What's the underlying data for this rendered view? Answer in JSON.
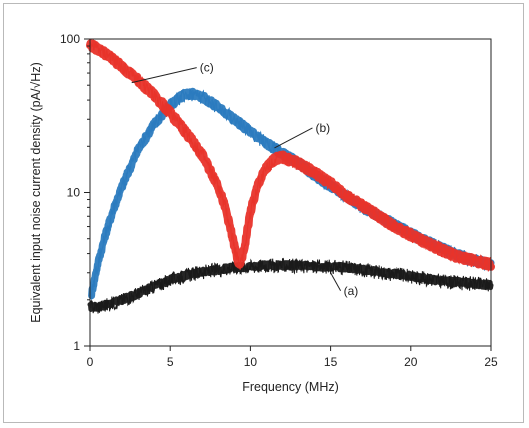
{
  "chart_data": {
    "type": "line",
    "title": "",
    "xlabel": "Frequency (MHz)",
    "ylabel": "Equivalent input noise current density (pA/√Hz)",
    "xlim": [
      0,
      25
    ],
    "ylim": [
      1,
      100
    ],
    "y_scale": "log",
    "x_ticks": [
      "0",
      "5",
      "10",
      "15",
      "20",
      "25"
    ],
    "y_ticks": [
      "1",
      "10",
      "100"
    ],
    "grid": false,
    "series": [
      {
        "color": "#1a1a1a",
        "x": [
          0,
          0.5,
          1,
          2,
          3,
          4,
          5,
          6,
          7,
          8,
          9,
          10,
          11,
          12,
          13,
          14,
          15,
          16,
          17,
          18,
          19,
          20,
          21,
          22,
          23,
          24,
          25
        ],
        "values": [
          1.8,
          1.8,
          1.85,
          2.0,
          2.2,
          2.45,
          2.7,
          2.9,
          3.05,
          3.15,
          3.25,
          3.3,
          3.35,
          3.35,
          3.35,
          3.3,
          3.3,
          3.25,
          3.15,
          3.05,
          2.95,
          2.85,
          2.75,
          2.65,
          2.6,
          2.55,
          2.5
        ]
      },
      {
        "color": "#2b7bbf",
        "x": [
          0.1,
          0.5,
          1,
          1.5,
          2,
          3,
          4,
          5,
          5.5,
          6,
          6.5,
          7,
          8,
          9,
          10,
          11,
          12,
          13,
          14,
          15,
          16,
          17,
          18,
          19,
          20,
          21,
          22,
          23,
          24,
          25
        ],
        "values": [
          2.2,
          3.5,
          5.5,
          8,
          11,
          19,
          28,
          37,
          41,
          44,
          44,
          42,
          36,
          30,
          25,
          21,
          18,
          15.5,
          13,
          11,
          9.5,
          8,
          7,
          6.2,
          5.4,
          4.8,
          4.3,
          3.9,
          3.6,
          3.4
        ]
      },
      {
        "color": "#e8332a",
        "x": [
          0,
          1,
          2,
          3,
          4,
          5,
          6,
          7,
          8,
          8.5,
          9,
          9.3,
          9.6,
          10,
          10.5,
          11,
          11.5,
          12,
          13,
          14,
          15,
          16,
          17,
          18,
          19,
          20,
          21,
          22,
          23,
          24,
          25
        ],
        "values": [
          92,
          80,
          66,
          54,
          43,
          33,
          24.5,
          17.5,
          11,
          7.5,
          4.5,
          3.3,
          4.2,
          7.5,
          11.5,
          14.5,
          16.5,
          17,
          15.5,
          13.5,
          11.5,
          9.5,
          8.2,
          7,
          6,
          5.3,
          4.7,
          4.2,
          3.8,
          3.6,
          3.4
        ]
      }
    ],
    "annotations": [
      {
        "label": "(a)",
        "target_series": 0,
        "x": 15.0,
        "y": 3.0
      },
      {
        "label": "(b)",
        "target_series": 1,
        "x": 11.5,
        "y": 19.5
      },
      {
        "label": "(c)",
        "target_series": 2,
        "x": 2.6,
        "y": 52
      }
    ]
  }
}
